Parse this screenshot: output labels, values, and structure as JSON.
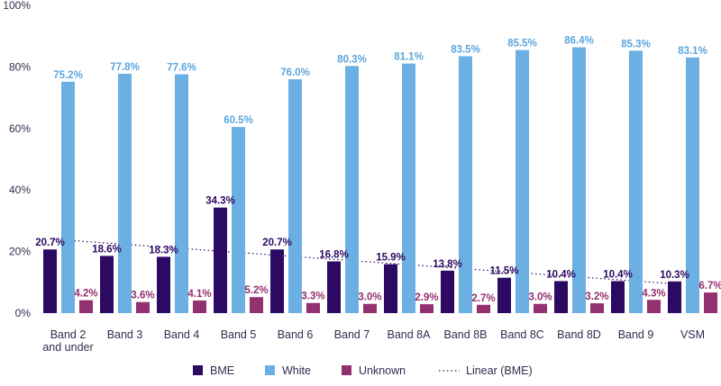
{
  "chart_data": {
    "type": "bar",
    "title": "",
    "xlabel": "",
    "ylabel": "",
    "ylim": [
      0,
      100
    ],
    "y_ticks": [
      "0%",
      "20%",
      "40%",
      "60%",
      "80%",
      "100%"
    ],
    "y_tick_values": [
      0,
      20,
      40,
      60,
      80,
      100
    ],
    "categories": [
      [
        "Band 2",
        "and under"
      ],
      [
        "Band 3"
      ],
      [
        "Band 4"
      ],
      [
        "Band 5"
      ],
      [
        "Band 6"
      ],
      [
        "Band 7"
      ],
      [
        "Band 8A"
      ],
      [
        "Band 8B"
      ],
      [
        "Band 8C"
      ],
      [
        "Band 8D"
      ],
      [
        "Band 9"
      ],
      [
        "VSM"
      ]
    ],
    "series": [
      {
        "name": "BME",
        "color": "#2c0a63",
        "label_color": "#2c0a63",
        "values": [
          20.7,
          18.6,
          18.3,
          34.3,
          20.7,
          16.8,
          15.9,
          13.8,
          11.5,
          10.4,
          10.4,
          10.3
        ],
        "labels": [
          "20.7%",
          "18.6%",
          "18.3%",
          "34.3%",
          "20.7%",
          "16.8%",
          "15.9%",
          "13.8%",
          "11.5%",
          "10.4%",
          "10.4%",
          "10.3%"
        ]
      },
      {
        "name": "White",
        "color": "#6cb0e3",
        "label_color": "#5aa6de",
        "values": [
          75.2,
          77.8,
          77.6,
          60.5,
          76.0,
          80.3,
          81.1,
          83.5,
          85.5,
          86.4,
          85.3,
          83.1
        ],
        "labels": [
          "75.2%",
          "77.8%",
          "77.6%",
          "60.5%",
          "76.0%",
          "80.3%",
          "81.1%",
          "83.5%",
          "85.5%",
          "86.4%",
          "85.3%",
          "83.1%"
        ]
      },
      {
        "name": "Unknown",
        "color": "#93306f",
        "label_color": "#93306f",
        "values": [
          4.2,
          3.6,
          4.1,
          5.2,
          3.3,
          3.0,
          2.9,
          2.7,
          3.0,
          3.2,
          4.3,
          6.7
        ],
        "labels": [
          "4.2%",
          "3.6%",
          "4.1%",
          "5.2%",
          "3.3%",
          "3.0%",
          "2.9%",
          "2.7%",
          "3.0%",
          "3.2%",
          "4.3%",
          "6.7%"
        ]
      }
    ],
    "trendline": {
      "name": "Linear (BME)",
      "of_series": "BME",
      "style": "dotted",
      "color": "#2c0a63"
    },
    "grid": false,
    "legend": {
      "position": "bottom",
      "entries": [
        "BME",
        "White",
        "Unknown",
        "Linear (BME)"
      ]
    }
  }
}
